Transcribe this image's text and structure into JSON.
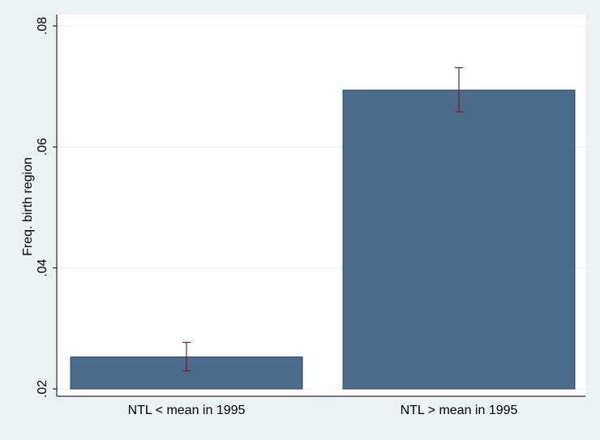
{
  "chart_data": {
    "type": "bar",
    "categories": [
      "NTL < mean in 1995",
      "NTL > mean in 1995"
    ],
    "values": [
      0.0253,
      0.0694
    ],
    "error_low": [
      0.023,
      0.0658
    ],
    "error_high": [
      0.0277,
      0.0731
    ],
    "ylabel": "Freq. birth region",
    "xlabel": "",
    "ylim": [
      0.02,
      0.08
    ],
    "yticks": [
      0.02,
      0.04,
      0.06,
      0.08
    ],
    "ytick_labels": [
      ".02",
      ".04",
      ".06",
      ".08"
    ],
    "grid": true,
    "colors": {
      "bar": "#4a6b8a",
      "bar_edge": "#2f4a63",
      "error_bar": "#8b1a1a",
      "plot_bg": "#ffffff",
      "outer_bg": "#eaf2f3",
      "grid": "#e6eeef"
    }
  }
}
